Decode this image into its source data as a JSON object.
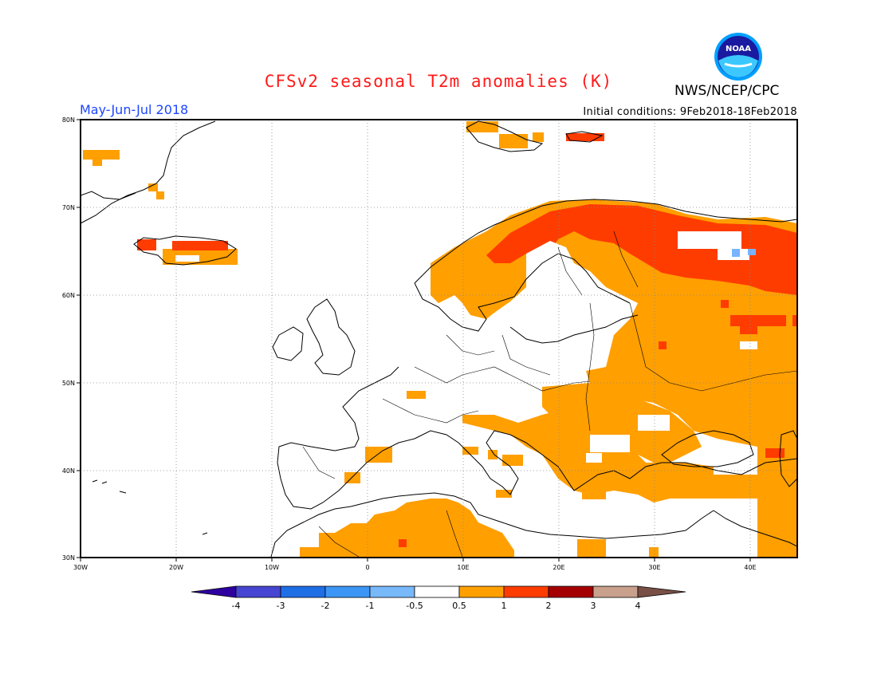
{
  "header": {
    "title": "CFSv2 seasonal T2m anomalies (K)",
    "agency": "NWS/NCEP/CPC",
    "logo_text": "NOAA",
    "season": "May-Jun-Jul 2018",
    "initial_conditions": "Initial conditions: 9Feb2018-18Feb2018"
  },
  "map": {
    "lon_range": [
      -30,
      45
    ],
    "lat_range": [
      30,
      80
    ],
    "lat_ticks": [
      "80N",
      "70N",
      "60N",
      "50N",
      "40N",
      "30N"
    ],
    "lon_ticks": [
      "30W",
      "20W",
      "10W",
      "0",
      "10E",
      "20E",
      "30E",
      "40E"
    ],
    "grid": "dotted",
    "colors": {
      "orange": "#ff9f00",
      "red": "#ff3c00",
      "blue": "#78b4ff",
      "land_outline": "#000000"
    },
    "anomaly_regions": [
      {
        "name": "scandinavia-north",
        "category": "red"
      },
      {
        "name": "scandinavia-south",
        "category": "orange"
      },
      {
        "name": "russia-west",
        "category": "orange"
      },
      {
        "name": "russia-north",
        "category": "red"
      },
      {
        "name": "balkans",
        "category": "orange"
      },
      {
        "name": "turkey",
        "category": "orange"
      },
      {
        "name": "north-africa",
        "category": "orange"
      },
      {
        "name": "iceland",
        "category": "red"
      },
      {
        "name": "spitsbergen",
        "category": "orange"
      }
    ]
  },
  "colorbar": {
    "labels": [
      "-4",
      "-3",
      "-2",
      "-1",
      "-0.5",
      "0.5",
      "1",
      "2",
      "3",
      "4"
    ],
    "colors": [
      "#2e00a0",
      "#4646d2",
      "#1e6ee6",
      "#3c96f5",
      "#78b9fa",
      "#ffffff",
      "#ffa000",
      "#ff3c00",
      "#a50000",
      "#c8a08c",
      "#785046"
    ]
  }
}
